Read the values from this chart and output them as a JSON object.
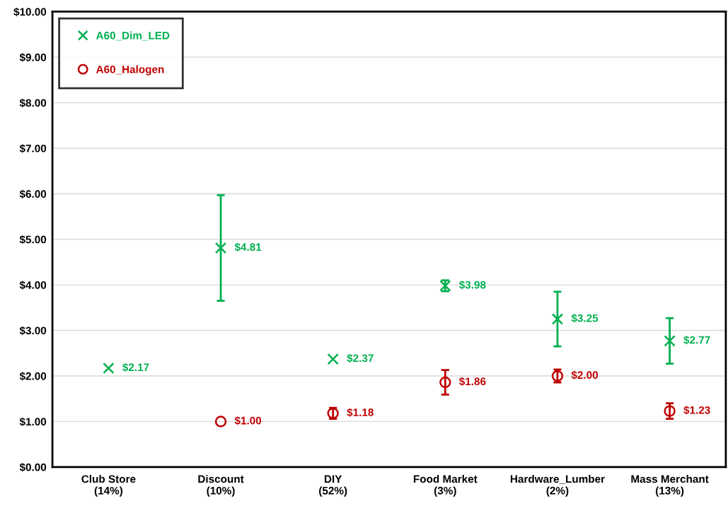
{
  "chart_data": {
    "type": "scatter",
    "categories": [
      "Club Store\n(14%)",
      "Discount\n(10%)",
      "DIY\n(52%)",
      "Food Market\n(3%)",
      "Hardware_Lumber\n(2%)",
      "Mass Merchant\n(13%)"
    ],
    "series": [
      {
        "name": "A60_Dim_LED",
        "color": "#00b050",
        "marker": "cross",
        "values": [
          2.17,
          4.81,
          2.37,
          3.98,
          3.25,
          2.77
        ],
        "errors": [
          null,
          [
            3.65,
            5.97
          ],
          null,
          [
            3.86,
            4.1
          ],
          [
            2.65,
            3.85
          ],
          [
            2.27,
            3.27
          ]
        ],
        "value_labels": [
          "$2.17",
          "$4.81",
          "$2.37",
          "$3.98",
          "$3.25",
          "$2.77"
        ]
      },
      {
        "name": "A60_Halogen",
        "color": "#c00000",
        "marker": "circle",
        "values": [
          null,
          1.0,
          1.18,
          1.86,
          2.0,
          1.23
        ],
        "errors": [
          null,
          null,
          [
            1.06,
            1.3
          ],
          [
            1.59,
            2.13
          ],
          [
            1.86,
            2.14
          ],
          [
            1.06,
            1.4
          ]
        ],
        "value_labels": [
          null,
          "$1.00",
          "$1.18",
          "$1.86",
          "$2.00",
          "$1.23"
        ]
      }
    ],
    "ylim": [
      0,
      10
    ],
    "yticks": [
      {
        "value": 0,
        "label": "$0.00"
      },
      {
        "value": 1,
        "label": "$1.00"
      },
      {
        "value": 2,
        "label": "$2.00"
      },
      {
        "value": 3,
        "label": "$3.00"
      },
      {
        "value": 4,
        "label": "$4.00"
      },
      {
        "value": 5,
        "label": "$5.00"
      },
      {
        "value": 6,
        "label": "$6.00"
      },
      {
        "value": 7,
        "label": "$7.00"
      },
      {
        "value": 8,
        "label": "$8.00"
      },
      {
        "value": 9,
        "label": "$9.00"
      },
      {
        "value": 10,
        "label": "$10.00"
      }
    ],
    "grid": "y",
    "legend": "top left"
  }
}
